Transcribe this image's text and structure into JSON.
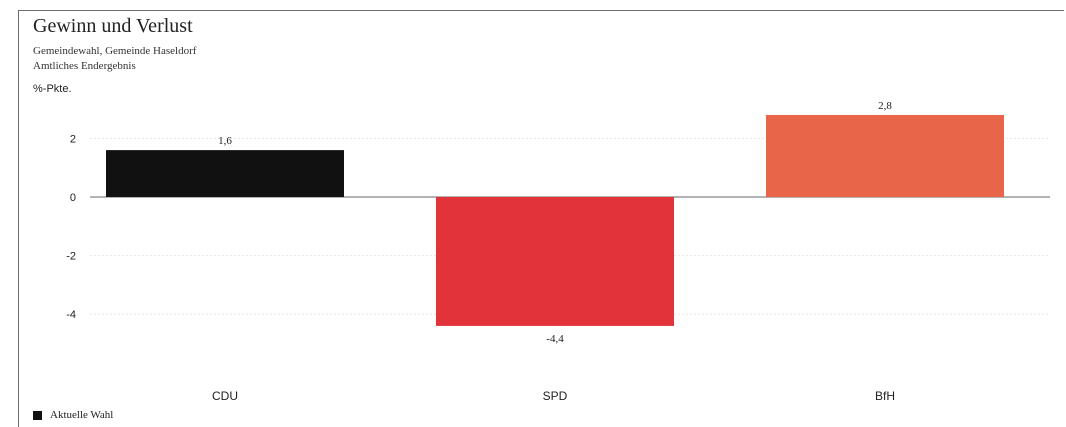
{
  "header": {
    "title": "Gewinn und Verlust",
    "subtitle_1": "Gemeindewahl, Gemeinde Haseldorf",
    "subtitle_2": "Amtliches Endergebnis"
  },
  "legend": {
    "label": "Aktuelle Wahl",
    "color": "#111111"
  },
  "chart_data": {
    "type": "bar",
    "title": "Gewinn und Verlust",
    "ylabel": "%-Pkte.",
    "xlabel": "",
    "categories": [
      "CDU",
      "SPD",
      "BfH"
    ],
    "series": [
      {
        "name": "Aktuelle Wahl",
        "values": [
          1.6,
          -4.4,
          2.8
        ],
        "value_labels": [
          "1,6",
          "-4,4",
          "2,8"
        ],
        "colors": [
          "#111111",
          "#e3333a",
          "#e8654a"
        ]
      }
    ],
    "yticks": [
      2,
      0,
      -2,
      -4
    ],
    "ytick_labels": [
      "2",
      "0",
      "-2",
      "-4"
    ],
    "ylim": [
      -5,
      3.5
    ],
    "grid": true,
    "legend_position": "bottom-left"
  }
}
